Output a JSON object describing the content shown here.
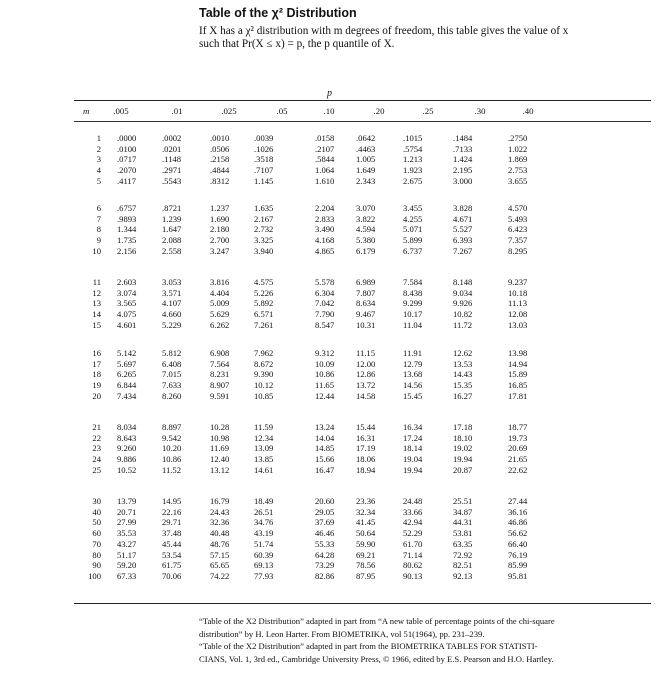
{
  "title": "Table of the χ² Distribution",
  "description": {
    "line1": "If X has a χ² distribution with m degrees of freedom, this table gives the value of x",
    "line2": "such that Pr(X ≤ x) = p, the p quantile of X."
  },
  "table": {
    "p_label": "p",
    "m_label": "m",
    "columns": [
      ".005",
      ".01",
      ".025",
      ".05",
      ".10",
      ".20",
      ".25",
      ".30",
      ".40"
    ],
    "groups": [
      {
        "rows": [
          {
            "m": "1",
            "values": [
              ".0000",
              ".0002",
              ".0010",
              ".0039",
              ".0158",
              ".0642",
              ".1015",
              ".1484",
              ".2750"
            ]
          },
          {
            "m": "2",
            "values": [
              ".0100",
              ".0201",
              ".0506",
              ".1026",
              ".2107",
              ".4463",
              ".5754",
              ".7133",
              "1.022"
            ]
          },
          {
            "m": "3",
            "values": [
              ".0717",
              ".1148",
              ".2158",
              ".3518",
              ".5844",
              "1.005",
              "1.213",
              "1.424",
              "1.869"
            ]
          },
          {
            "m": "4",
            "values": [
              ".2070",
              ".2971",
              ".4844",
              ".7107",
              "1.064",
              "1.649",
              "1.923",
              "2.195",
              "2.753"
            ]
          },
          {
            "m": "5",
            "values": [
              ".4117",
              ".5543",
              ".8312",
              "1.145",
              "1.610",
              "2.343",
              "2.675",
              "3.000",
              "3.655"
            ]
          }
        ]
      },
      {
        "rows": [
          {
            "m": "6",
            "values": [
              ".6757",
              ".8721",
              "1.237",
              "1.635",
              "2.204",
              "3.070",
              "3.455",
              "3.828",
              "4.570"
            ]
          },
          {
            "m": "7",
            "values": [
              ".9893",
              "1.239",
              "1.690",
              "2.167",
              "2.833",
              "3.822",
              "4.255",
              "4.671",
              "5.493"
            ]
          },
          {
            "m": "8",
            "values": [
              "1.344",
              "1.647",
              "2.180",
              "2.732",
              "3.490",
              "4.594",
              "5.071",
              "5.527",
              "6.423"
            ]
          },
          {
            "m": "9",
            "values": [
              "1.735",
              "2.088",
              "2.700",
              "3.325",
              "4.168",
              "5.380",
              "5.899",
              "6.393",
              "7.357"
            ]
          },
          {
            "m": "10",
            "values": [
              "2.156",
              "2.558",
              "3.247",
              "3.940",
              "4.865",
              "6.179",
              "6.737",
              "7.267",
              "8.295"
            ]
          }
        ]
      },
      {
        "rows": [
          {
            "m": "11",
            "values": [
              "2.603",
              "3.053",
              "3.816",
              "4.575",
              "5.578",
              "6.989",
              "7.584",
              "8.148",
              "9.237"
            ]
          },
          {
            "m": "12",
            "values": [
              "3.074",
              "3.571",
              "4.404",
              "5.226",
              "6.304",
              "7.807",
              "8.438",
              "9.034",
              "10.18"
            ]
          },
          {
            "m": "13",
            "values": [
              "3.565",
              "4.107",
              "5.009",
              "5.892",
              "7.042",
              "8.634",
              "9.299",
              "9.926",
              "11.13"
            ]
          },
          {
            "m": "14",
            "values": [
              "4.075",
              "4.660",
              "5.629",
              "6.571",
              "7.790",
              "9.467",
              "10.17",
              "10.82",
              "12.08"
            ]
          },
          {
            "m": "15",
            "values": [
              "4.601",
              "5.229",
              "6.262",
              "7.261",
              "8.547",
              "10.31",
              "11.04",
              "11.72",
              "13.03"
            ]
          }
        ]
      },
      {
        "rows": [
          {
            "m": "16",
            "values": [
              "5.142",
              "5.812",
              "6.908",
              "7.962",
              "9.312",
              "11.15",
              "11.91",
              "12.62",
              "13.98"
            ]
          },
          {
            "m": "17",
            "values": [
              "5.697",
              "6.408",
              "7.564",
              "8.672",
              "10.09",
              "12.00",
              "12.79",
              "13.53",
              "14.94"
            ]
          },
          {
            "m": "18",
            "values": [
              "6.265",
              "7.015",
              "8.231",
              "9.390",
              "10.86",
              "12.86",
              "13.68",
              "14.43",
              "15.89"
            ]
          },
          {
            "m": "19",
            "values": [
              "6.844",
              "7.633",
              "8.907",
              "10.12",
              "11.65",
              "13.72",
              "14.56",
              "15.35",
              "16.85"
            ]
          },
          {
            "m": "20",
            "values": [
              "7.434",
              "8.260",
              "9.591",
              "10.85",
              "12.44",
              "14.58",
              "15.45",
              "16.27",
              "17.81"
            ]
          }
        ]
      },
      {
        "rows": [
          {
            "m": "21",
            "values": [
              "8.034",
              "8.897",
              "10.28",
              "11.59",
              "13.24",
              "15.44",
              "16.34",
              "17.18",
              "18.77"
            ]
          },
          {
            "m": "22",
            "values": [
              "8.643",
              "9.542",
              "10.98",
              "12.34",
              "14.04",
              "16.31",
              "17.24",
              "18.10",
              "19.73"
            ]
          },
          {
            "m": "23",
            "values": [
              "9.260",
              "10.20",
              "11.69",
              "13.09",
              "14.85",
              "17.19",
              "18.14",
              "19.02",
              "20.69"
            ]
          },
          {
            "m": "24",
            "values": [
              "9.886",
              "10.86",
              "12.40",
              "13.85",
              "15.66",
              "18.06",
              "19.04",
              "19.94",
              "21.65"
            ]
          },
          {
            "m": "25",
            "values": [
              "10.52",
              "11.52",
              "13.12",
              "14.61",
              "16.47",
              "18.94",
              "19.94",
              "20.87",
              "22.62"
            ]
          }
        ]
      },
      {
        "rows": [
          {
            "m": "30",
            "values": [
              "13.79",
              "14.95",
              "16.79",
              "18.49",
              "20.60",
              "23.36",
              "24.48",
              "25.51",
              "27.44"
            ]
          },
          {
            "m": "40",
            "values": [
              "20.71",
              "22.16",
              "24.43",
              "26.51",
              "29.05",
              "32.34",
              "33.66",
              "34.87",
              "36.16"
            ]
          },
          {
            "m": "50",
            "values": [
              "27.99",
              "29.71",
              "32.36",
              "34.76",
              "37.69",
              "41.45",
              "42.94",
              "44.31",
              "46.86"
            ]
          },
          {
            "m": "60",
            "values": [
              "35.53",
              "37.48",
              "40.48",
              "43.19",
              "46.46",
              "50.64",
              "52.29",
              "53.81",
              "56.62"
            ]
          },
          {
            "m": "70",
            "values": [
              "43.27",
              "45.44",
              "48.76",
              "51.74",
              "55.33",
              "59.90",
              "61.70",
              "63.35",
              "66.40"
            ]
          },
          {
            "m": "80",
            "values": [
              "51.17",
              "53.54",
              "57.15",
              "60.39",
              "64.28",
              "69.21",
              "71.14",
              "72.92",
              "76.19"
            ]
          },
          {
            "m": "90",
            "values": [
              "59.20",
              "61.75",
              "65.65",
              "69.13",
              "73.29",
              "78.56",
              "80.62",
              "82.51",
              "85.99"
            ]
          },
          {
            "m": "100",
            "values": [
              "67.33",
              "70.06",
              "74.22",
              "77.93",
              "82.86",
              "87.95",
              "90.13",
              "92.13",
              "95.81"
            ]
          }
        ]
      }
    ]
  },
  "footnote": {
    "line1": "“Table of the X2 Distribution” adapted in part from “A new table of percentage points of the chi-square",
    "line2": "distribution” by H. Leon Harter. From BIOMETRIKA, vol 51(1964), pp. 231–239.",
    "line3": "“Table of the X2 Distribution” adapted in part from the BIOMETRIKA TABLES FOR STATISTI-",
    "line4": "CIANS, Vol. 1, 3rd ed., Cambridge University Press, © 1966, edited by E.S. Pearson and H.O. Hartley."
  }
}
